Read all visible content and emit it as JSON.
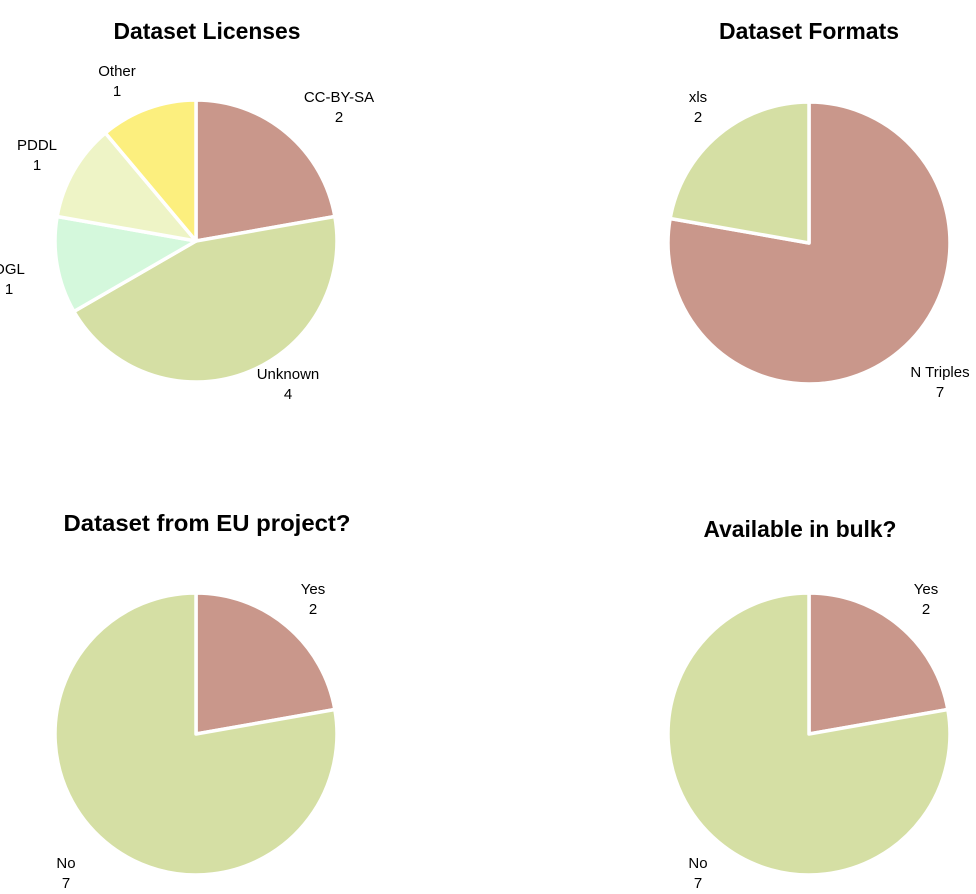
{
  "chart_data": [
    {
      "type": "pie",
      "title": "Dataset Licenses",
      "slices": [
        {
          "label": "CC-BY-SA",
          "value": 2,
          "color": "#C9978B"
        },
        {
          "label": "Unknown",
          "value": 4,
          "color": "#D5DFA4"
        },
        {
          "label": "OGL",
          "value": 1,
          "color": "#D4F8DC"
        },
        {
          "label": "PDDL",
          "value": 1,
          "color": "#EEF4C6"
        },
        {
          "label": "Other",
          "value": 1,
          "color": "#FCEF7E"
        }
      ]
    },
    {
      "type": "pie",
      "title": "Dataset Formats",
      "slices": [
        {
          "label": "N Triples",
          "value": 7,
          "color": "#C9978B"
        },
        {
          "label": "xls",
          "value": 2,
          "color": "#D5DFA4"
        }
      ]
    },
    {
      "type": "pie",
      "title": "Dataset from EU project?",
      "slices": [
        {
          "label": "Yes",
          "value": 2,
          "color": "#C9978B"
        },
        {
          "label": "No",
          "value": 7,
          "color": "#D5DFA4"
        }
      ]
    },
    {
      "type": "pie",
      "title": "Available in bulk?",
      "slices": [
        {
          "label": "Yes",
          "value": 2,
          "color": "#C9978B"
        },
        {
          "label": "No",
          "value": 7,
          "color": "#D5DFA4"
        }
      ]
    }
  ]
}
